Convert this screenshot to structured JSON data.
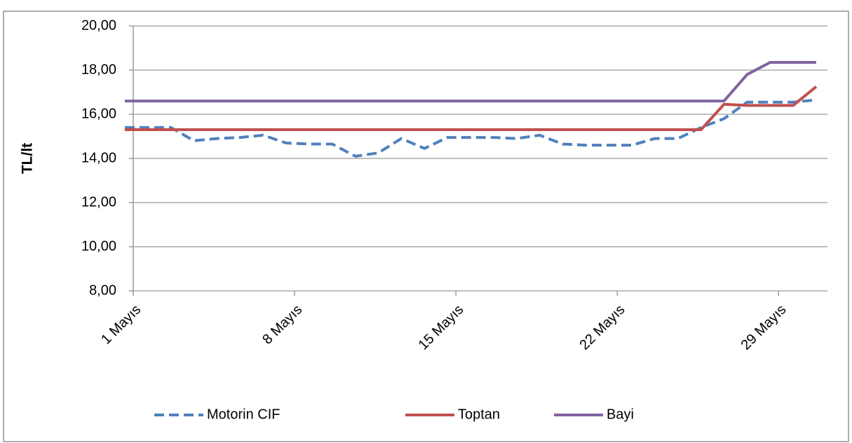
{
  "chart_data": {
    "type": "line",
    "y_label": "TL/lt",
    "categories": [
      "1 Mayıs",
      null,
      null,
      null,
      null,
      null,
      null,
      "8 Mayıs",
      null,
      null,
      null,
      null,
      null,
      null,
      "15 Mayıs",
      null,
      null,
      null,
      null,
      null,
      null,
      "22 Mayıs",
      null,
      null,
      null,
      null,
      null,
      null,
      "29 Mayıs",
      null,
      null
    ],
    "series": [
      {
        "name": "Motorin CIF",
        "color": "#4f81bd",
        "dashed": true,
        "values": [
          15.4,
          15.4,
          15.4,
          14.8,
          14.9,
          14.95,
          15.05,
          14.7,
          14.65,
          14.65,
          14.1,
          14.25,
          14.9,
          14.45,
          14.95,
          14.95,
          14.95,
          14.9,
          15.05,
          14.65,
          14.6,
          14.6,
          14.6,
          14.9,
          14.9,
          15.4,
          15.8,
          16.55,
          16.55,
          16.55,
          16.65
        ]
      },
      {
        "name": "Toptan",
        "color": "#c0504d",
        "dashed": false,
        "values": [
          15.3,
          15.3,
          15.3,
          15.3,
          15.3,
          15.3,
          15.3,
          15.3,
          15.3,
          15.3,
          15.3,
          15.3,
          15.3,
          15.3,
          15.3,
          15.3,
          15.3,
          15.3,
          15.3,
          15.3,
          15.3,
          15.3,
          15.3,
          15.3,
          15.3,
          15.3,
          16.45,
          16.4,
          16.4,
          16.4,
          17.25
        ]
      },
      {
        "name": "Bayi",
        "color": "#8064a2",
        "dashed": false,
        "values": [
          16.6,
          16.6,
          16.6,
          16.6,
          16.6,
          16.6,
          16.6,
          16.6,
          16.6,
          16.6,
          16.6,
          16.6,
          16.6,
          16.6,
          16.6,
          16.6,
          16.6,
          16.6,
          16.6,
          16.6,
          16.6,
          16.6,
          16.6,
          16.6,
          16.6,
          16.6,
          16.6,
          17.8,
          18.35,
          18.35,
          18.35
        ]
      }
    ],
    "ylim": [
      8,
      20
    ],
    "yticks": [
      {
        "value": 8,
        "label": "8,00"
      },
      {
        "value": 10,
        "label": "10,00"
      },
      {
        "value": 12,
        "label": "12,00"
      },
      {
        "value": 14,
        "label": "14,00"
      },
      {
        "value": 16,
        "label": "16,00"
      },
      {
        "value": 18,
        "label": "18,00"
      },
      {
        "value": 20,
        "label": "20,00"
      }
    ],
    "grid": true,
    "legend": "bottom"
  }
}
